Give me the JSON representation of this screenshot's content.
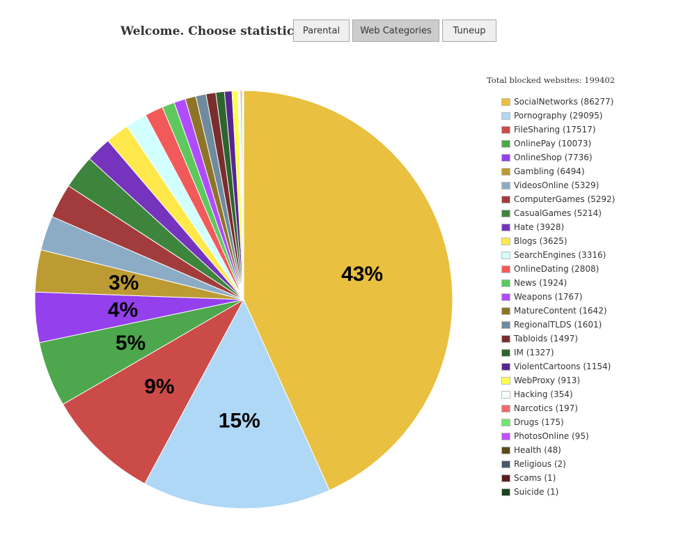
{
  "header": {
    "welcome": "Welcome. Choose statistics:",
    "tabs": [
      {
        "label": "Parental",
        "active": false
      },
      {
        "label": "Web Categories",
        "active": true
      },
      {
        "label": "Tuneup",
        "active": false
      }
    ]
  },
  "total_label": "Total blocked websites: 199402",
  "chart_data": {
    "type": "pie",
    "total": 199402,
    "slices": [
      {
        "name": "SocialNetworks",
        "value": 86277,
        "color": "#e9c03f",
        "label": "43%",
        "legend": "SocialNetworks (86277)"
      },
      {
        "name": "Pornography",
        "value": 29095,
        "color": "#afd7f6",
        "label": "15%",
        "legend": "Pornography (29095)"
      },
      {
        "name": "FileSharing",
        "value": 17517,
        "color": "#cb4b48",
        "label": "9%",
        "legend": "FileSharing (17517)"
      },
      {
        "name": "OnlinePay",
        "value": 10073,
        "color": "#4da74d",
        "label": "5%",
        "legend": "OnlinePay (10073)"
      },
      {
        "name": "OnlineShop",
        "value": 7736,
        "color": "#9440ed",
        "label": "4%",
        "legend": "OnlineShop (7736)"
      },
      {
        "name": "Gambling",
        "value": 6494,
        "color": "#bd9b33",
        "label": "3%",
        "legend": "Gambling (6494)"
      },
      {
        "name": "VideosOnline",
        "value": 5329,
        "color": "#8cacc6",
        "label": "",
        "legend": "VideosOnline (5329)"
      },
      {
        "name": "ComputerGames",
        "value": 5292,
        "color": "#a23c3c",
        "label": "",
        "legend": "ComputerGames (5292)"
      },
      {
        "name": "CasualGames",
        "value": 5214,
        "color": "#3d853d",
        "label": "",
        "legend": "CasualGames (5214)"
      },
      {
        "name": "Hate",
        "value": 3928,
        "color": "#7633bd",
        "label": "",
        "legend": "Hate (3928)"
      },
      {
        "name": "Blogs",
        "value": 3625,
        "color": "#ffe84c",
        "label": "",
        "legend": "Blogs (3625)"
      },
      {
        "name": "SearchEngines",
        "value": 3316,
        "color": "#d2ffff",
        "label": "",
        "legend": "SearchEngines (3316)"
      },
      {
        "name": "OnlineDating",
        "value": 2808,
        "color": "#f25a5a",
        "label": "",
        "legend": "OnlineDating (2808)"
      },
      {
        "name": "News",
        "value": 1924,
        "color": "#5dc95d",
        "label": "",
        "legend": "News (1924)"
      },
      {
        "name": "Weapons",
        "value": 1767,
        "color": "#b04cff",
        "label": "",
        "legend": "Weapons (1767)"
      },
      {
        "name": "MatureContent",
        "value": 1642,
        "color": "#8e7426",
        "label": "",
        "legend": "MatureContent (1642)"
      },
      {
        "name": "RegionalTLDS",
        "value": 1601,
        "color": "#708a9e",
        "label": "",
        "legend": "RegionalTLDS (1601)"
      },
      {
        "name": "Tabloids",
        "value": 1497,
        "color": "#7a2d2d",
        "label": "",
        "legend": "Tabloids (1497)"
      },
      {
        "name": "IM",
        "value": 1327,
        "color": "#2e642e",
        "label": "",
        "legend": "IM (1327)"
      },
      {
        "name": "ViolentCartoons",
        "value": 1154,
        "color": "#582690",
        "label": "",
        "legend": "ViolentCartoons (1154)"
      },
      {
        "name": "WebProxy",
        "value": 913,
        "color": "#ffff50",
        "label": "",
        "legend": "WebProxy (913)"
      },
      {
        "name": "Hacking",
        "value": 354,
        "color": "#f5ffff",
        "label": "",
        "legend": "Hacking (354)"
      },
      {
        "name": "Narcotics",
        "value": 197,
        "color": "#f06a6a",
        "label": "",
        "legend": "Narcotics (197)"
      },
      {
        "name": "Drugs",
        "value": 175,
        "color": "#6fe46f",
        "label": "",
        "legend": "Drugs (175)"
      },
      {
        "name": "PhotosOnline",
        "value": 95,
        "color": "#c050ff",
        "label": "",
        "legend": "PhotosOnline (95)"
      },
      {
        "name": "Health",
        "value": 48,
        "color": "#5b4a18",
        "label": "",
        "legend": "Health (48)"
      },
      {
        "name": "Religious",
        "value": 2,
        "color": "#475868",
        "label": "",
        "legend": "Religious (2)"
      },
      {
        "name": "Scams",
        "value": 1,
        "color": "#5a1e1e",
        "label": "",
        "legend": "Scams (1)"
      },
      {
        "name": "Suicide",
        "value": 1,
        "color": "#1e421e",
        "label": "",
        "legend": "Suicide (1)"
      }
    ]
  }
}
